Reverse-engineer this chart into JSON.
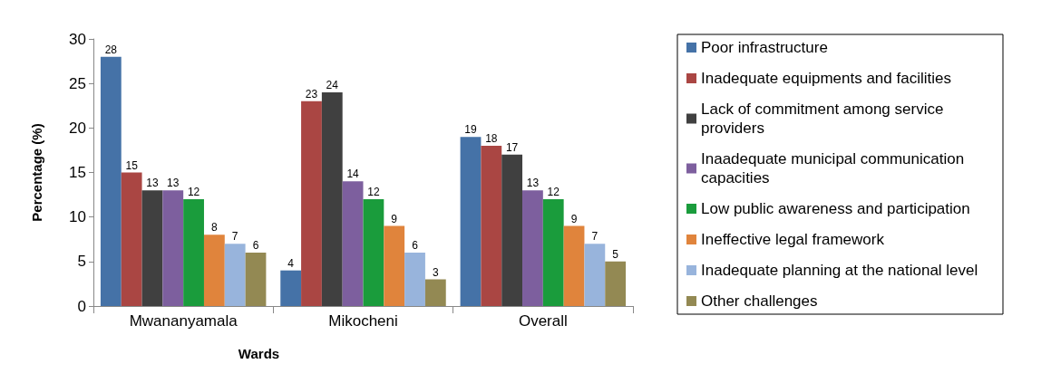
{
  "chart_data": {
    "type": "bar",
    "xlabel": "Wards",
    "ylabel": "Percentage (%)",
    "categories": [
      "Mwananyamala",
      "Mikocheni",
      "Overall"
    ],
    "ylim": [
      0,
      30
    ],
    "yticks": [
      0,
      5,
      10,
      15,
      20,
      25,
      30
    ],
    "grid": false,
    "legend": "right",
    "data_labels": true,
    "series": [
      {
        "name": "Poor infrastructure",
        "color": "#4572a7",
        "values": [
          28,
          4,
          19
        ]
      },
      {
        "name": "Inadequate equipments and facilities",
        "color": "#aa4643",
        "values": [
          15,
          23,
          18
        ]
      },
      {
        "name": "Lack of commitment among service providers",
        "color": "#404040",
        "values": [
          13,
          24,
          17
        ]
      },
      {
        "name": "Inaadequate municipal communication  capacities",
        "color": "#7d5f9e",
        "values": [
          13,
          14,
          13
        ]
      },
      {
        "name": "Low public awareness and participation",
        "color": "#1a9c3c",
        "values": [
          12,
          12,
          12
        ]
      },
      {
        "name": "Ineffective legal framework",
        "color": "#e0843c",
        "values": [
          8,
          9,
          9
        ]
      },
      {
        "name": "Inadequate planning at the national level",
        "color": "#98b4dc",
        "values": [
          7,
          6,
          7
        ]
      },
      {
        "name": "Other challenges",
        "color": "#938953",
        "values": [
          6,
          3,
          5
        ]
      }
    ]
  }
}
